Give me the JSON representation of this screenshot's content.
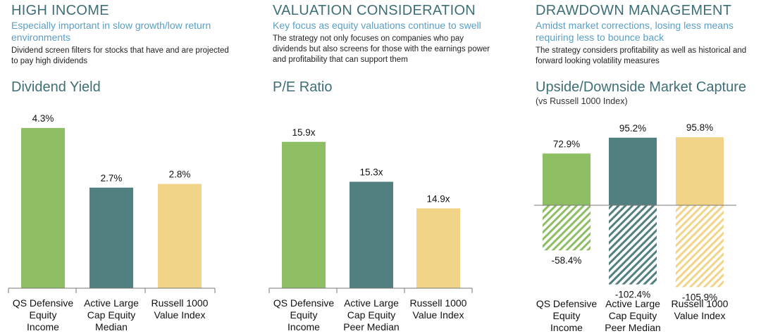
{
  "panels": [
    {
      "heading": "HIGH INCOME",
      "subheading": "Especially important in slow growth/low return environments",
      "description": "Dividend screen filters for stocks that have and are projected to pay high dividends"
    },
    {
      "heading": "VALUATION CONSIDERATION",
      "subheading": "Key focus as equity valuations continue to swell",
      "description": "The strategy not only focuses on companies who pay dividends but also screens for those with the earnings power and profitability that can support them"
    },
    {
      "heading": "DRAWDOWN MANAGEMENT",
      "subheading": "Amidst market corrections, losing less means requiring less to bounce back",
      "description": "The strategy considers profitability  as well as historical and forward looking volatility measures"
    }
  ],
  "colors": {
    "green": "#8dbe64",
    "teal": "#527f80",
    "yellow": "#f2d488",
    "heading": "#3e6e76",
    "subheading": "#5a9ec4"
  },
  "chart_data": [
    {
      "type": "bar",
      "title": "Dividend Yield",
      "categories": [
        [
          "QS Defensive",
          "Equity",
          "Income"
        ],
        [
          "Active Large",
          "Cap Equity",
          "Median"
        ],
        [
          "Russell 1000",
          "Value Index"
        ]
      ],
      "values": [
        4.3,
        2.7,
        2.8
      ],
      "labels": [
        "4.3%",
        "2.7%",
        "2.8%"
      ],
      "colors": [
        "#8dbe64",
        "#527f80",
        "#f2d488"
      ],
      "ylim": [
        0,
        5.0
      ]
    },
    {
      "type": "bar",
      "title": "P/E Ratio",
      "categories": [
        [
          "QS Defensive",
          "Equity",
          "Income"
        ],
        [
          "Active Large",
          "Cap Equity",
          "Peer Median"
        ],
        [
          "Russell 1000",
          "Value Index"
        ]
      ],
      "values": [
        15.9,
        15.3,
        14.9
      ],
      "labels": [
        "15.9x",
        "15.3x",
        "14.9x"
      ],
      "colors": [
        "#8dbe64",
        "#527f80",
        "#f2d488"
      ],
      "ylim": [
        13.7,
        16.5
      ]
    },
    {
      "type": "bar",
      "title": "Upside/Downside Market Capture",
      "subtitle": "(vs Russell 1000 Index)",
      "categories": [
        [
          "QS Defensive",
          "Equity",
          "Income"
        ],
        [
          "Active Large",
          "Cap Equity",
          "Peer Median"
        ],
        [
          "Russell 1000",
          "Value Index"
        ]
      ],
      "series": [
        {
          "values": [
            72.9,
            95.2,
            95.8
          ],
          "labels": [
            "72.9%",
            "95.2%",
            "95.8%"
          ]
        },
        {
          "values": [
            -58.4,
            -102.4,
            -105.9
          ],
          "labels": [
            "-58.4%",
            "-102.4%",
            "-105.9%"
          ]
        }
      ],
      "colors": [
        "#8dbe64",
        "#527f80",
        "#f2d488"
      ],
      "ylim": [
        -110,
        100
      ]
    }
  ]
}
